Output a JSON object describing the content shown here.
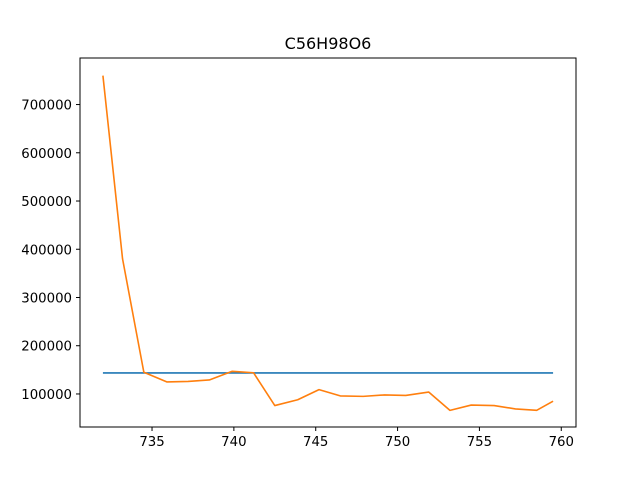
{
  "chart_data": {
    "type": "line",
    "title": "C56H98O6",
    "xlabel": "",
    "ylabel": "",
    "xlim": [
      730.6,
      760.9
    ],
    "ylim": [
      31500,
      796500
    ],
    "xticks": [
      735,
      740,
      745,
      750,
      755,
      760
    ],
    "yticks": [
      100000,
      200000,
      300000,
      400000,
      500000,
      600000,
      700000
    ],
    "grid": false,
    "legend": "none",
    "series": [
      {
        "color": "#1f77b4",
        "x": [
          732.0,
          759.5
        ],
        "y": [
          143600,
          143600
        ]
      },
      {
        "color": "#ff7f0e",
        "x": [
          732.0,
          733.2,
          734.5,
          735.9,
          737.2,
          738.5,
          739.9,
          741.2,
          742.5,
          743.9,
          745.2,
          746.5,
          747.9,
          749.2,
          750.5,
          751.9,
          753.2,
          754.5,
          755.9,
          757.2,
          758.5,
          759.5
        ],
        "y": [
          760000,
          380000,
          145000,
          125000,
          126000,
          129000,
          147000,
          144000,
          76000,
          88000,
          109000,
          96000,
          95000,
          98000,
          97000,
          104000,
          66000,
          77000,
          76000,
          69000,
          66000,
          85000
        ]
      }
    ]
  }
}
